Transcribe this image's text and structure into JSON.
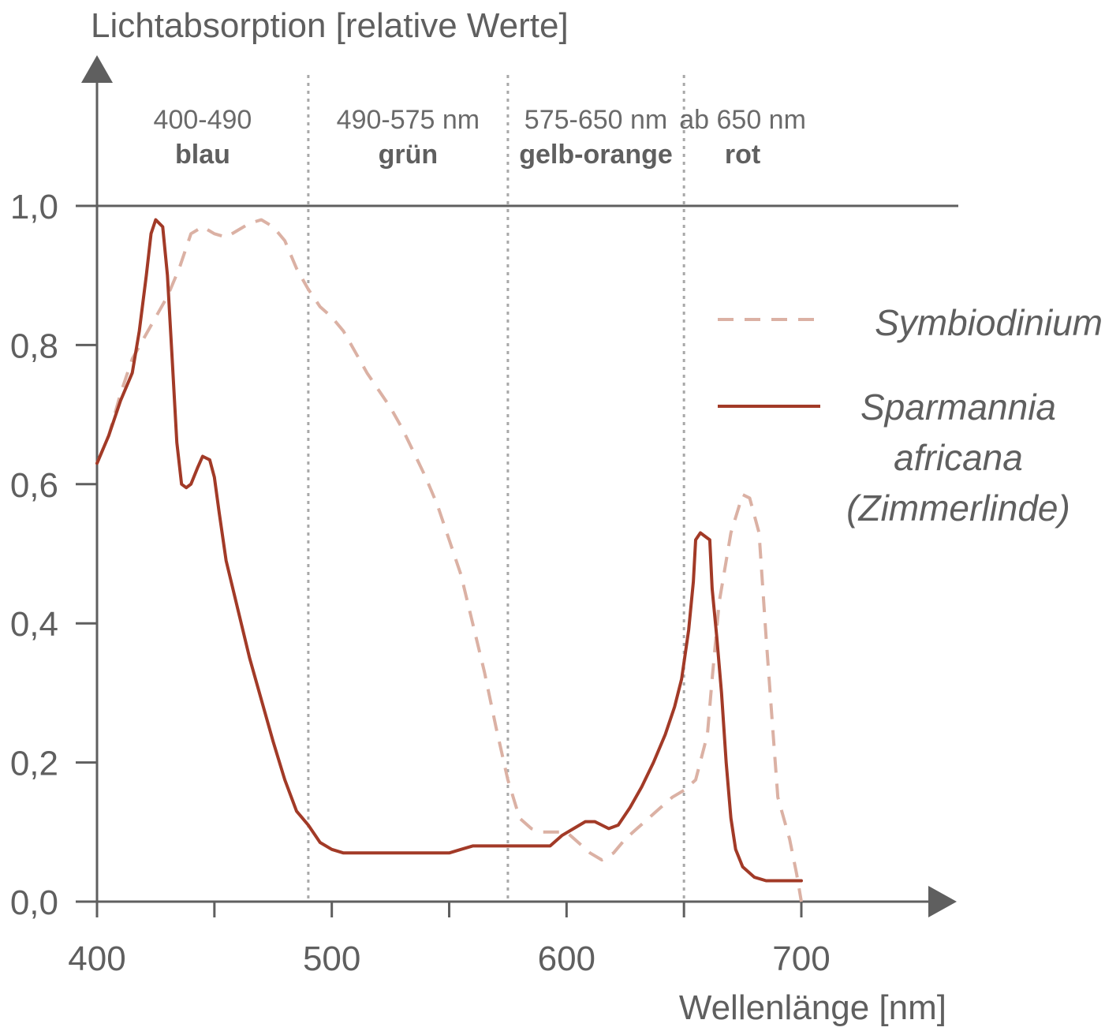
{
  "chart_data": {
    "type": "line",
    "ylabel": "Lichtabsorption [relative Werte]",
    "xlabel": "Wellenlänge [nm]",
    "xlim": [
      400,
      700
    ],
    "ylim": [
      0,
      1.0
    ],
    "x_ticks": [
      400,
      450,
      500,
      550,
      600,
      650,
      700
    ],
    "x_tick_labels": [
      "400",
      "500",
      "600",
      "700"
    ],
    "x_tick_label_values": [
      400,
      500,
      600,
      700
    ],
    "y_ticks": [
      0.0,
      0.2,
      0.4,
      0.6,
      0.8,
      1.0
    ],
    "y_tick_labels": [
      "0,0",
      "0,2",
      "0,4",
      "0,6",
      "0,8",
      "1,0"
    ],
    "grid": false,
    "bands": [
      {
        "range_label": "400-490",
        "name": "blau",
        "start": 400,
        "end": 490
      },
      {
        "range_label": "490-575 nm",
        "name": "grün",
        "start": 490,
        "end": 575
      },
      {
        "range_label": "575-650 nm",
        "name": "gelb-orange",
        "start": 575,
        "end": 650
      },
      {
        "range_label": "ab 650 nm",
        "name": "rot",
        "start": 650,
        "end": 700
      }
    ],
    "band_boundaries": [
      490,
      575,
      650
    ],
    "legend_position": "right",
    "series": [
      {
        "name": "Symbiodinium",
        "style": "dashed",
        "color": "#dbb1a4",
        "points": [
          [
            400,
            0.63
          ],
          [
            405,
            0.67
          ],
          [
            410,
            0.73
          ],
          [
            415,
            0.78
          ],
          [
            420,
            0.81
          ],
          [
            425,
            0.84
          ],
          [
            430,
            0.87
          ],
          [
            435,
            0.91
          ],
          [
            440,
            0.96
          ],
          [
            445,
            0.97
          ],
          [
            450,
            0.96
          ],
          [
            455,
            0.955
          ],
          [
            460,
            0.965
          ],
          [
            465,
            0.975
          ],
          [
            470,
            0.98
          ],
          [
            475,
            0.97
          ],
          [
            480,
            0.95
          ],
          [
            485,
            0.91
          ],
          [
            490,
            0.88
          ],
          [
            495,
            0.855
          ],
          [
            500,
            0.84
          ],
          [
            505,
            0.82
          ],
          [
            510,
            0.79
          ],
          [
            515,
            0.76
          ],
          [
            520,
            0.735
          ],
          [
            525,
            0.71
          ],
          [
            530,
            0.68
          ],
          [
            535,
            0.645
          ],
          [
            540,
            0.61
          ],
          [
            545,
            0.57
          ],
          [
            550,
            0.52
          ],
          [
            555,
            0.47
          ],
          [
            560,
            0.4
          ],
          [
            565,
            0.33
          ],
          [
            570,
            0.25
          ],
          [
            575,
            0.175
          ],
          [
            580,
            0.12
          ],
          [
            585,
            0.105
          ],
          [
            590,
            0.1
          ],
          [
            595,
            0.1
          ],
          [
            600,
            0.1
          ],
          [
            605,
            0.085
          ],
          [
            610,
            0.07
          ],
          [
            615,
            0.06
          ],
          [
            620,
            0.07
          ],
          [
            625,
            0.09
          ],
          [
            630,
            0.105
          ],
          [
            635,
            0.12
          ],
          [
            640,
            0.135
          ],
          [
            645,
            0.15
          ],
          [
            650,
            0.16
          ],
          [
            655,
            0.175
          ],
          [
            660,
            0.24
          ],
          [
            662,
            0.32
          ],
          [
            665,
            0.43
          ],
          [
            670,
            0.53
          ],
          [
            675,
            0.585
          ],
          [
            678,
            0.58
          ],
          [
            682,
            0.53
          ],
          [
            685,
            0.38
          ],
          [
            688,
            0.24
          ],
          [
            690,
            0.15
          ],
          [
            695,
            0.09
          ],
          [
            698,
            0.04
          ],
          [
            700,
            0.0
          ]
        ]
      },
      {
        "name": "Sparmannia africana (Zimmerlinde)",
        "label_lines": [
          "Sparmannia",
          "africana",
          "(Zimmerlinde)"
        ],
        "style": "solid",
        "color": "#a23a27",
        "points": [
          [
            400,
            0.63
          ],
          [
            405,
            0.67
          ],
          [
            410,
            0.72
          ],
          [
            415,
            0.76
          ],
          [
            418,
            0.82
          ],
          [
            421,
            0.9
          ],
          [
            423,
            0.96
          ],
          [
            425,
            0.98
          ],
          [
            428,
            0.97
          ],
          [
            430,
            0.9
          ],
          [
            432,
            0.78
          ],
          [
            434,
            0.66
          ],
          [
            436,
            0.6
          ],
          [
            438,
            0.595
          ],
          [
            440,
            0.6
          ],
          [
            443,
            0.625
          ],
          [
            445,
            0.64
          ],
          [
            448,
            0.635
          ],
          [
            450,
            0.61
          ],
          [
            452,
            0.56
          ],
          [
            455,
            0.49
          ],
          [
            460,
            0.42
          ],
          [
            465,
            0.35
          ],
          [
            470,
            0.29
          ],
          [
            475,
            0.23
          ],
          [
            480,
            0.175
          ],
          [
            485,
            0.13
          ],
          [
            490,
            0.11
          ],
          [
            495,
            0.085
          ],
          [
            500,
            0.075
          ],
          [
            505,
            0.07
          ],
          [
            510,
            0.07
          ],
          [
            520,
            0.07
          ],
          [
            530,
            0.07
          ],
          [
            540,
            0.07
          ],
          [
            550,
            0.07
          ],
          [
            555,
            0.075
          ],
          [
            560,
            0.08
          ],
          [
            570,
            0.08
          ],
          [
            580,
            0.08
          ],
          [
            590,
            0.08
          ],
          [
            593,
            0.08
          ],
          [
            598,
            0.095
          ],
          [
            603,
            0.105
          ],
          [
            608,
            0.115
          ],
          [
            612,
            0.115
          ],
          [
            615,
            0.11
          ],
          [
            618,
            0.105
          ],
          [
            622,
            0.11
          ],
          [
            627,
            0.135
          ],
          [
            632,
            0.165
          ],
          [
            637,
            0.2
          ],
          [
            642,
            0.24
          ],
          [
            646,
            0.28
          ],
          [
            649,
            0.32
          ],
          [
            652,
            0.39
          ],
          [
            654,
            0.46
          ],
          [
            655,
            0.52
          ],
          [
            657,
            0.53
          ],
          [
            659,
            0.525
          ],
          [
            661,
            0.52
          ],
          [
            662,
            0.45
          ],
          [
            664,
            0.38
          ],
          [
            666,
            0.3
          ],
          [
            668,
            0.2
          ],
          [
            670,
            0.12
          ],
          [
            672,
            0.075
          ],
          [
            675,
            0.05
          ],
          [
            680,
            0.035
          ],
          [
            685,
            0.03
          ],
          [
            690,
            0.03
          ],
          [
            695,
            0.03
          ],
          [
            700,
            0.03
          ]
        ]
      }
    ]
  }
}
